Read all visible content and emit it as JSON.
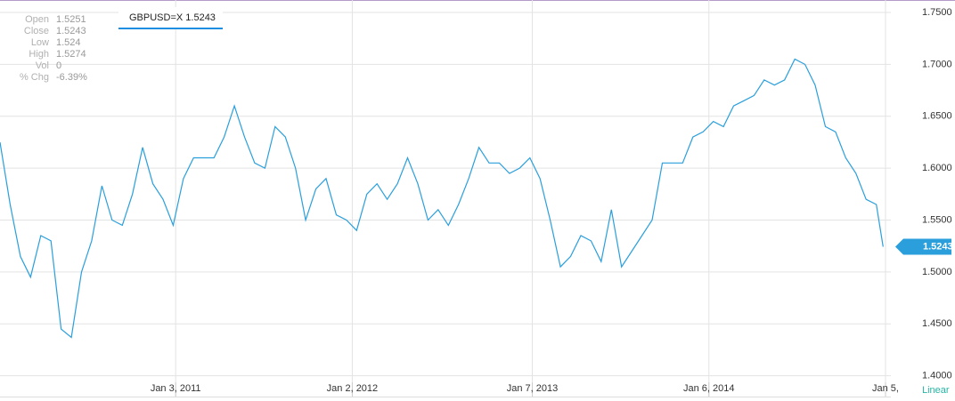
{
  "chart_data": {
    "type": "line",
    "series": [
      {
        "name": "GBPUSD=X",
        "color": "#2a9fdc",
        "x": [
          "2010-01-06",
          "2010-01-27",
          "2010-02-17",
          "2010-03-10",
          "2010-03-31",
          "2010-04-21",
          "2010-05-12",
          "2010-06-02",
          "2010-06-23",
          "2010-07-14",
          "2010-08-04",
          "2010-08-25",
          "2010-09-15",
          "2010-10-06",
          "2010-10-27",
          "2010-11-17",
          "2010-12-08",
          "2010-12-29",
          "2011-01-19",
          "2011-02-09",
          "2011-03-02",
          "2011-03-23",
          "2011-04-13",
          "2011-05-04",
          "2011-05-25",
          "2011-06-15",
          "2011-07-06",
          "2011-07-27",
          "2011-08-17",
          "2011-09-07",
          "2011-09-28",
          "2011-10-19",
          "2011-11-09",
          "2011-11-30",
          "2011-12-21",
          "2012-01-11",
          "2012-02-01",
          "2012-02-22",
          "2012-03-14",
          "2012-04-04",
          "2012-04-25",
          "2012-05-16",
          "2012-06-06",
          "2012-06-27",
          "2012-07-18",
          "2012-08-08",
          "2012-08-29",
          "2012-09-19",
          "2012-10-10",
          "2012-10-31",
          "2012-11-21",
          "2012-12-12",
          "2013-01-02",
          "2013-01-23",
          "2013-02-13",
          "2013-03-06",
          "2013-03-27",
          "2013-04-17",
          "2013-05-08",
          "2013-05-29",
          "2013-06-19",
          "2013-07-10",
          "2013-07-31",
          "2013-08-21",
          "2013-09-11",
          "2013-10-02",
          "2013-10-23",
          "2013-11-13",
          "2013-12-04",
          "2013-12-25",
          "2014-01-15",
          "2014-02-05",
          "2014-02-26",
          "2014-03-19",
          "2014-04-09",
          "2014-04-30",
          "2014-05-21",
          "2014-06-11",
          "2014-07-02",
          "2014-07-23",
          "2014-08-13",
          "2014-09-03",
          "2014-09-24",
          "2014-10-15",
          "2014-11-05",
          "2014-11-26",
          "2014-12-17",
          "2014-12-31"
        ],
        "values": [
          1.625,
          1.565,
          1.515,
          1.495,
          1.535,
          1.53,
          1.445,
          1.437,
          1.5,
          1.53,
          1.583,
          1.55,
          1.545,
          1.575,
          1.62,
          1.585,
          1.57,
          1.545,
          1.59,
          1.61,
          1.61,
          1.61,
          1.63,
          1.66,
          1.63,
          1.605,
          1.6,
          1.64,
          1.63,
          1.6,
          1.55,
          1.58,
          1.59,
          1.555,
          1.55,
          1.54,
          1.575,
          1.585,
          1.57,
          1.585,
          1.61,
          1.585,
          1.55,
          1.56,
          1.545,
          1.565,
          1.59,
          1.62,
          1.605,
          1.605,
          1.595,
          1.6,
          1.61,
          1.59,
          1.55,
          1.505,
          1.515,
          1.535,
          1.53,
          1.51,
          1.56,
          1.505,
          1.52,
          1.535,
          1.55,
          1.605,
          1.605,
          1.605,
          1.63,
          1.635,
          1.645,
          1.64,
          1.66,
          1.665,
          1.67,
          1.685,
          1.68,
          1.685,
          1.705,
          1.7,
          1.68,
          1.64,
          1.635,
          1.61,
          1.595,
          1.57,
          1.565,
          1.5243
        ]
      }
    ],
    "current_value": 1.5243,
    "xlim": [
      "2010-01-06",
      "2015-01-16"
    ],
    "xticks": [
      {
        "value": "2011-01-03",
        "label": "Jan 3, 2011"
      },
      {
        "value": "2012-01-02",
        "label": "Jan 2, 2012"
      },
      {
        "value": "2013-01-07",
        "label": "Jan 7, 2013"
      },
      {
        "value": "2014-01-06",
        "label": "Jan 6, 2014"
      },
      {
        "value": "2015-01-05",
        "label": "Jan 5,"
      }
    ],
    "ylim": [
      1.38,
      1.762
    ],
    "yticks": [
      {
        "value": 1.4,
        "label": "1.4000"
      },
      {
        "value": 1.45,
        "label": "1.4500"
      },
      {
        "value": 1.5,
        "label": "1.5000"
      },
      {
        "value": 1.55,
        "label": "1.5500"
      },
      {
        "value": 1.6,
        "label": "1.6000"
      },
      {
        "value": 1.65,
        "label": "1.6500"
      },
      {
        "value": 1.7,
        "label": "1.7000"
      },
      {
        "value": 1.75,
        "label": "1.7500"
      }
    ],
    "grid": true,
    "scale_label": "Linear",
    "info": [
      {
        "label": "Open",
        "value": "1.5251"
      },
      {
        "label": "Close",
        "value": "1.5243"
      },
      {
        "label": "Low",
        "value": "1.524"
      },
      {
        "label": "High",
        "value": "1.5274"
      },
      {
        "label": "Vol",
        "value": "0"
      },
      {
        "label": "% Chg",
        "value": "-6.39%"
      }
    ]
  }
}
